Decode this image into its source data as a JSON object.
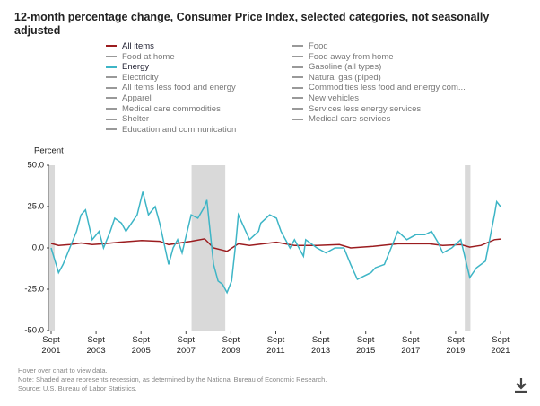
{
  "chart_data": {
    "type": "line",
    "title": "12-month percentage change, Consumer Price Index, selected categories, not seasonally adjusted",
    "y_label": "Percent",
    "ylim": [
      -50,
      50
    ],
    "yticks": [
      {
        "value": 50,
        "label": "50.0"
      },
      {
        "value": 25,
        "label": "25.0"
      },
      {
        "value": 0,
        "label": "0.0"
      },
      {
        "value": -25,
        "label": "-25.0"
      },
      {
        "value": -50,
        "label": "-50.0"
      }
    ],
    "xlim": [
      2001.59,
      2021.83
    ],
    "xticks": [
      {
        "value": 2001.67,
        "label": "Sept 2001"
      },
      {
        "value": 2003.67,
        "label": "Sept 2003"
      },
      {
        "value": 2005.67,
        "label": "Sept 2005"
      },
      {
        "value": 2007.67,
        "label": "Sept 2007"
      },
      {
        "value": 2009.67,
        "label": "Sept 2009"
      },
      {
        "value": 2011.67,
        "label": "Sept 2011"
      },
      {
        "value": 2013.67,
        "label": "Sept 2013"
      },
      {
        "value": 2015.67,
        "label": "Sept 2015"
      },
      {
        "value": 2017.67,
        "label": "Sept 2017"
      },
      {
        "value": 2019.67,
        "label": "Sept 2019"
      },
      {
        "value": 2021.67,
        "label": "Sept 2021"
      }
    ],
    "shaded_periods": [
      [
        2001.59,
        2001.83
      ],
      [
        2007.92,
        2009.42
      ],
      [
        2020.08,
        2020.33
      ]
    ],
    "grid": false,
    "series": [
      {
        "name": "All items",
        "color": "#9b1c1f",
        "x": [
          2001.67,
          2002.0,
          2002.5,
          2003.0,
          2003.5,
          2004.0,
          2004.7,
          2005.7,
          2006.5,
          2006.9,
          2007.9,
          2008.5,
          2008.9,
          2009.5,
          2010.0,
          2010.5,
          2011.7,
          2012.5,
          2013.5,
          2014.5,
          2015.0,
          2016.0,
          2017.1,
          2018.5,
          2019.1,
          2019.9,
          2020.3,
          2020.8,
          2021.4,
          2021.67
        ],
        "values": [
          2.7,
          1.5,
          2,
          3,
          2,
          2.5,
          3.5,
          4.5,
          4,
          2,
          4,
          5.5,
          0,
          -2,
          2.5,
          1.5,
          3.5,
          1.5,
          1.5,
          2,
          0,
          1,
          2.5,
          2.5,
          1.5,
          2,
          0.5,
          1.5,
          5,
          5.4
        ]
      },
      {
        "name": "Food",
        "color": "#999999"
      },
      {
        "name": "Food at home",
        "color": "#999999"
      },
      {
        "name": "Food away from home",
        "color": "#999999"
      },
      {
        "name": "Energy",
        "color": "#3db5c6",
        "x": [
          2001.67,
          2002.0,
          2002.2,
          2002.5,
          2002.8,
          2003.0,
          2003.2,
          2003.5,
          2003.8,
          2004.0,
          2004.3,
          2004.5,
          2004.8,
          2005.0,
          2005.5,
          2005.75,
          2006.0,
          2006.3,
          2006.5,
          2006.9,
          2007.1,
          2007.3,
          2007.5,
          2007.9,
          2008.2,
          2008.5,
          2008.6,
          2008.9,
          2009.1,
          2009.3,
          2009.5,
          2009.7,
          2009.9,
          2010.0,
          2010.5,
          2010.9,
          2011.0,
          2011.4,
          2011.7,
          2011.9,
          2012.3,
          2012.5,
          2012.7,
          2012.9,
          2013.0,
          2013.5,
          2013.9,
          2014.3,
          2014.7,
          2015.0,
          2015.3,
          2015.6,
          2015.9,
          2016.1,
          2016.5,
          2016.8,
          2017.1,
          2017.5,
          2017.9,
          2018.3,
          2018.6,
          2018.9,
          2019.1,
          2019.5,
          2019.9,
          2020.3,
          2020.6,
          2021.0,
          2021.4,
          2021.5,
          2021.67
        ],
        "values": [
          0,
          -15,
          -10,
          0,
          10,
          20,
          23,
          5,
          10,
          0,
          10,
          18,
          15,
          10,
          20,
          34,
          20,
          25,
          15,
          -10,
          0,
          5,
          -3,
          20,
          18,
          25,
          29,
          -10,
          -20,
          -22,
          -27,
          -20,
          5,
          20,
          5,
          10,
          15,
          20,
          18,
          10,
          0,
          5,
          0,
          -5,
          5,
          0,
          -3,
          0,
          0,
          -10,
          -19,
          -17,
          -15,
          -12,
          -10,
          0,
          10,
          5,
          8,
          8,
          10,
          3,
          -3,
          0,
          5,
          -18,
          -12,
          -8,
          20,
          28,
          25
        ]
      },
      {
        "name": "Gasoline (all types)",
        "color": "#999999"
      },
      {
        "name": "Electricity",
        "color": "#999999"
      },
      {
        "name": "Natural gas (piped)",
        "color": "#999999"
      },
      {
        "name": "All items less food and energy",
        "color": "#999999"
      },
      {
        "name": "Commodities less food and energy com...",
        "color": "#999999"
      },
      {
        "name": "Apparel",
        "color": "#999999"
      },
      {
        "name": "New vehicles",
        "color": "#999999"
      },
      {
        "name": "Medical care commodities",
        "color": "#999999"
      },
      {
        "name": "Services less energy services",
        "color": "#999999"
      },
      {
        "name": "Shelter",
        "color": "#999999"
      },
      {
        "name": "Medical care services",
        "color": "#999999"
      },
      {
        "name": "Education and communication",
        "color": "#999999"
      }
    ],
    "notes": [
      "Hover over chart to view data.",
      "Note: Shaded area represents recession, as determined by the National Bureau of Economic Research.",
      "Source: U.S. Bureau of Labor Statistics."
    ]
  }
}
